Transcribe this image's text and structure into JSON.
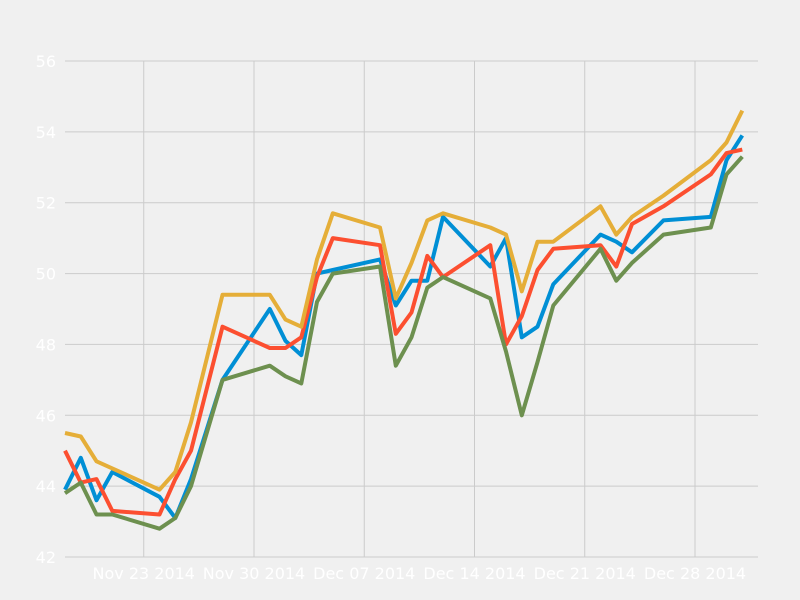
{
  "chart_data": {
    "type": "line",
    "title": "",
    "xlabel": "",
    "ylabel": "",
    "grid": true,
    "ylim": [
      42,
      56
    ],
    "xlim": [
      "2014-11-18",
      "2015-01-01"
    ],
    "y_ticks": [
      42,
      44,
      46,
      48,
      50,
      52,
      54,
      56
    ],
    "x_ticks": [
      {
        "date": "2014-11-23",
        "label": "Nov 23 2014"
      },
      {
        "date": "2014-11-30",
        "label": "Nov 30 2014"
      },
      {
        "date": "2014-12-07",
        "label": "Dec 07 2014"
      },
      {
        "date": "2014-12-14",
        "label": "Dec 14 2014"
      },
      {
        "date": "2014-12-21",
        "label": "Dec 21 2014"
      },
      {
        "date": "2014-12-28",
        "label": "Dec 28 2014"
      }
    ],
    "x": [
      "2014-11-18",
      "2014-11-19",
      "2014-11-20",
      "2014-11-21",
      "2014-11-24",
      "2014-11-25",
      "2014-11-26",
      "2014-11-28",
      "2014-12-01",
      "2014-12-02",
      "2014-12-03",
      "2014-12-04",
      "2014-12-05",
      "2014-12-08",
      "2014-12-09",
      "2014-12-10",
      "2014-12-11",
      "2014-12-12",
      "2014-12-15",
      "2014-12-16",
      "2014-12-17",
      "2014-12-18",
      "2014-12-19",
      "2014-12-22",
      "2014-12-23",
      "2014-12-24",
      "2014-12-26",
      "2014-12-29",
      "2014-12-30",
      "2014-12-31"
    ],
    "series": [
      {
        "color": "#008fd5",
        "values": [
          43.9,
          44.8,
          43.6,
          44.4,
          43.7,
          43.1,
          44.2,
          47.0,
          49.0,
          48.1,
          47.7,
          50.0,
          50.1,
          50.4,
          49.1,
          49.8,
          49.8,
          51.6,
          50.2,
          51.0,
          48.2,
          48.5,
          49.7,
          51.1,
          50.9,
          50.6,
          51.5,
          51.6,
          53.2,
          53.9
        ]
      },
      {
        "color": "#fc4f30",
        "values": [
          45.0,
          44.1,
          44.2,
          43.3,
          43.2,
          44.2,
          45.0,
          48.5,
          47.9,
          47.9,
          48.2,
          49.9,
          51.0,
          50.8,
          48.3,
          48.9,
          50.5,
          49.9,
          50.8,
          48.0,
          48.8,
          50.1,
          50.7,
          50.8,
          50.2,
          51.4,
          51.9,
          52.8,
          53.4,
          53.5
        ]
      },
      {
        "color": "#e5ae38",
        "values": [
          45.5,
          45.4,
          44.7,
          44.5,
          43.9,
          44.4,
          45.8,
          49.4,
          49.4,
          48.7,
          48.5,
          50.4,
          51.7,
          51.3,
          49.3,
          50.3,
          51.5,
          51.7,
          51.3,
          51.1,
          49.5,
          50.9,
          50.9,
          51.9,
          51.1,
          51.6,
          52.2,
          53.2,
          53.7,
          54.6
        ]
      },
      {
        "color": "#6d904f",
        "values": [
          43.8,
          44.1,
          43.2,
          43.2,
          42.8,
          43.1,
          44.0,
          47.0,
          47.4,
          47.1,
          46.9,
          49.2,
          50.0,
          50.2,
          47.4,
          48.2,
          49.6,
          49.9,
          49.3,
          47.8,
          46.0,
          47.5,
          49.1,
          50.7,
          49.8,
          50.3,
          51.1,
          51.3,
          52.8,
          53.3
        ]
      }
    ]
  }
}
